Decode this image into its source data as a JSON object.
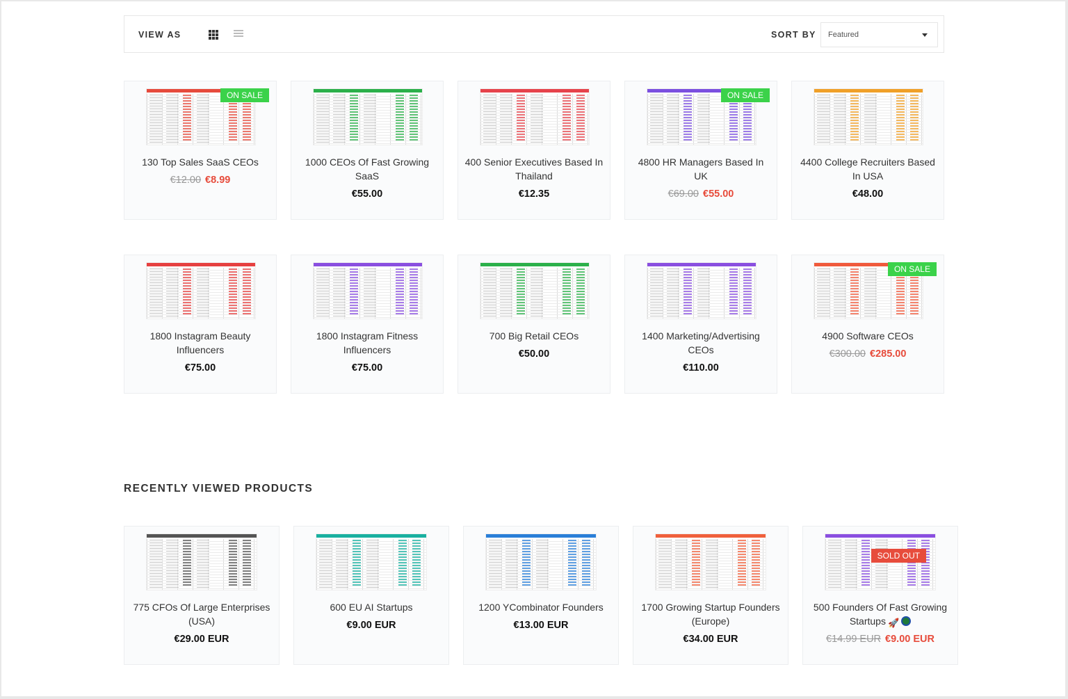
{
  "toolbar": {
    "view_as_label": "VIEW AS",
    "sort_by_label": "SORT BY",
    "sort_value": "Featured"
  },
  "products": [
    {
      "name": "130 Top Sales SaaS CEOs",
      "old_price": "€12.00",
      "price": "€8.99",
      "badge": "ON SALE",
      "accent": "#e64a3c"
    },
    {
      "name": "1000 CEOs Of Fast Growing SaaS",
      "price": "€55.00",
      "accent": "#2bb04a"
    },
    {
      "name": "400 Senior Executives Based In Thailand",
      "price": "€12.35",
      "accent": "#e6434b"
    },
    {
      "name": "4800 HR Managers Based In UK",
      "old_price": "€69.00",
      "price": "€55.00",
      "badge": "ON SALE",
      "accent": "#7b4fe0"
    },
    {
      "name": "4400 College Recruiters Based In USA",
      "price": "€48.00",
      "accent": "#f0a028"
    },
    {
      "name": "1800 Instagram Beauty Influencers",
      "price": "€75.00",
      "accent": "#e64040"
    },
    {
      "name": "1800 Instagram Fitness Influencers",
      "price": "€75.00",
      "accent": "#8a4fe0"
    },
    {
      "name": "700 Big Retail CEOs",
      "price": "€50.00",
      "accent": "#2bb04a"
    },
    {
      "name": "1400 Marketing/Advertising CEOs",
      "price": "€110.00",
      "accent": "#8a4fe0"
    },
    {
      "name": "4900 Software CEOs",
      "old_price": "€300.00",
      "price": "€285.00",
      "badge": "ON SALE",
      "accent": "#f05a3c"
    }
  ],
  "recently_viewed": {
    "title": "RECENTLY VIEWED PRODUCTS",
    "items": [
      {
        "name": "775 CFOs Of Large Enterprises (USA)",
        "price": "€29.00 EUR",
        "accent": "#555555"
      },
      {
        "name": "600 EU AI Startups",
        "price": "€9.00 EUR",
        "accent": "#19b0a0"
      },
      {
        "name": "1200 YCombinator Founders",
        "price": "€13.00 EUR",
        "accent": "#2a7fd8"
      },
      {
        "name": "1700 Growing Startup Founders (Europe)",
        "price": "€34.00 EUR",
        "accent": "#f0603c"
      },
      {
        "name": "500 Founders Of Fast Growing Startups",
        "old_price": "€14.99 EUR",
        "price": "€9.00 EUR",
        "badge": "SOLD OUT",
        "accent": "#8a4fe0"
      }
    ]
  },
  "icons": [
    "grid-view-icon",
    "list-view-icon",
    "chevron-down-icon",
    "rocket-emoji-icon",
    "globe-emoji-icon"
  ]
}
